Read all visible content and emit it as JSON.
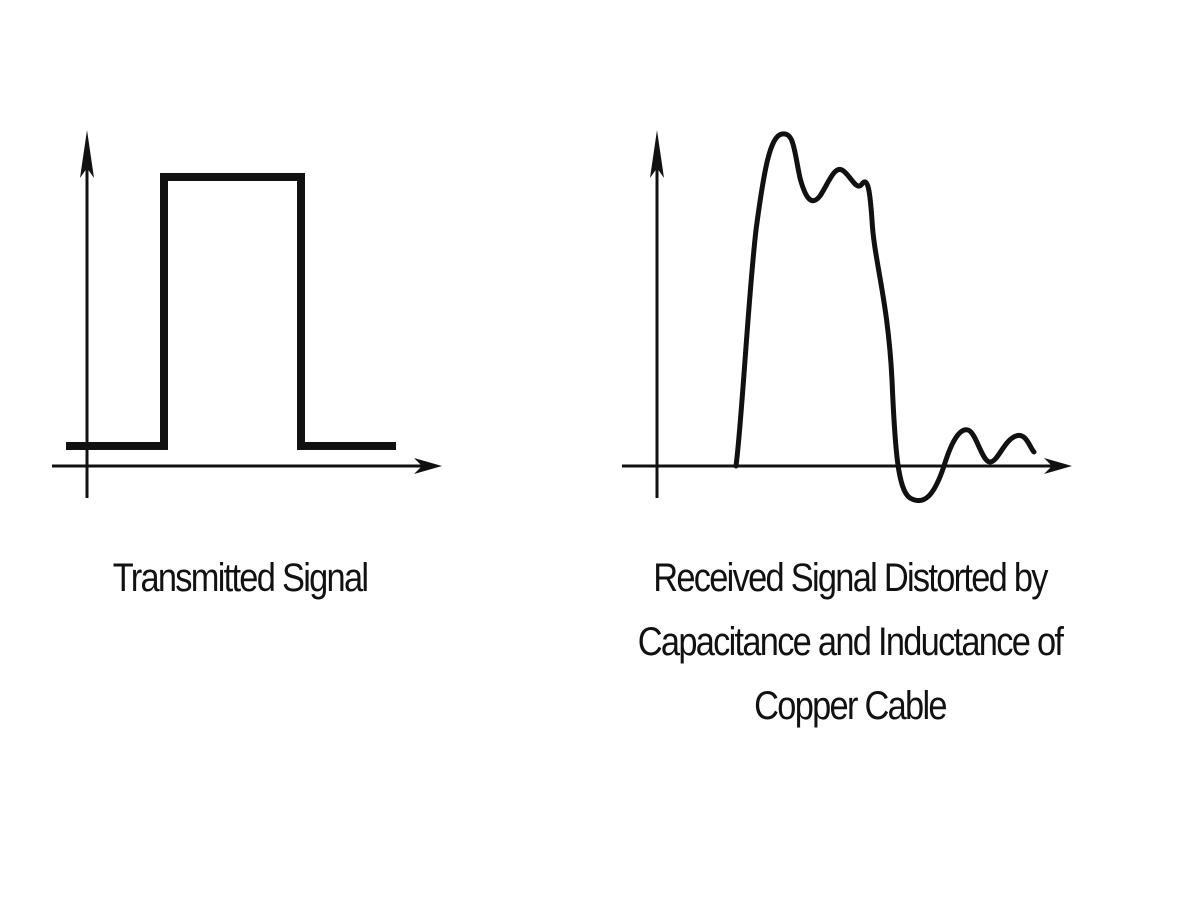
{
  "diagram": {
    "panels": [
      {
        "caption_lines": [
          "Transmitted Signal"
        ],
        "waveform": "square-pulse"
      },
      {
        "caption_lines": [
          "Received Signal Distorted by",
          "Capacitance and Inductance of",
          "Copper Cable"
        ],
        "waveform": "distorted-pulse"
      }
    ],
    "stroke_color": "#111111",
    "background_color": "#ffffff"
  }
}
